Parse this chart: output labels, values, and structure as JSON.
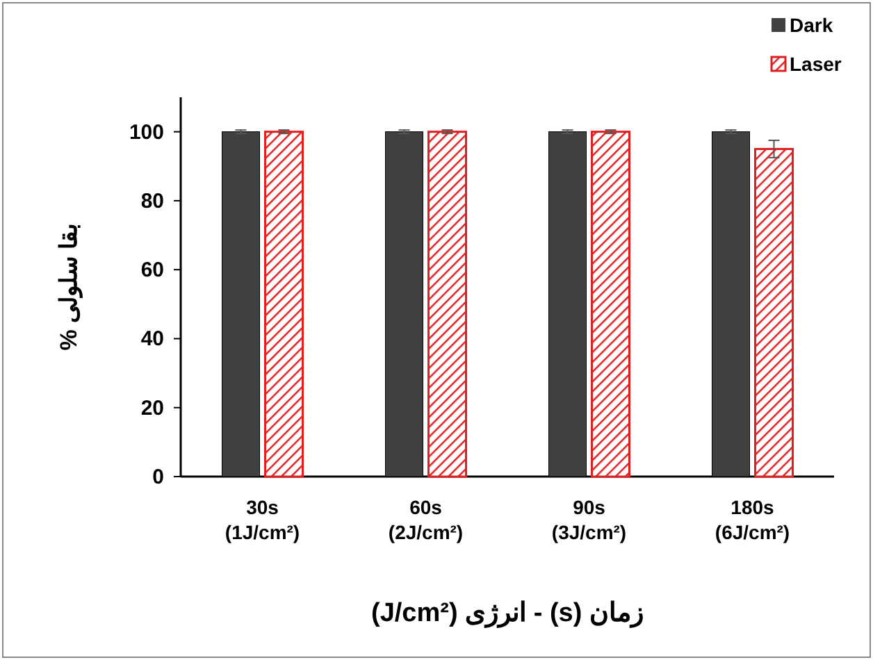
{
  "chart_data": {
    "type": "bar",
    "xlabel": "زمان (s) - انرژی (J/cm²)",
    "ylabel": "بقا سلولی %",
    "categories": [
      "30s\n(1J/cm²)",
      "60s\n(2J/cm²)",
      "90s\n(3J/cm²)",
      "180s\n(6J/cm²)"
    ],
    "series": [
      {
        "name": "Dark",
        "color": "#404040",
        "values": [
          100,
          100,
          100,
          100
        ],
        "errors": [
          0.5,
          0.5,
          0.5,
          0.5
        ]
      },
      {
        "name": "Laser",
        "color": "#e02020",
        "values": [
          100,
          100,
          100,
          95
        ],
        "errors": [
          0.5,
          0.5,
          0.5,
          2.5
        ]
      }
    ],
    "ylim": [
      0,
      110
    ],
    "yticks": [
      0,
      20,
      40,
      60,
      80,
      100
    ],
    "grid": false,
    "legend": "top right"
  }
}
